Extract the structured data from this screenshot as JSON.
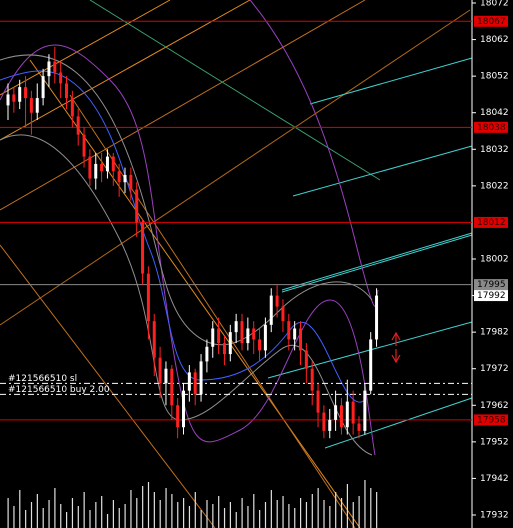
{
  "chart_data": {
    "type": "candlestick",
    "ylim": [
      17932,
      18072
    ],
    "yticks": [
      18072,
      18062,
      18052,
      18042,
      18032,
      18022,
      18002,
      17992,
      17982,
      17972,
      17962,
      17952,
      17942,
      17932
    ],
    "up_color": "#ffffff",
    "down_color": "#ff2020",
    "open": [
      18044,
      18047,
      18045,
      18049,
      18046,
      18042,
      18046,
      18052,
      18056,
      18053,
      18050,
      18046,
      18041,
      18036,
      18030,
      18024,
      18028,
      18026,
      18030,
      18026,
      18023,
      18025,
      18021,
      18012,
      17998,
      17985,
      17975,
      17968,
      17972,
      17962,
      17956,
      17966,
      17971,
      17965,
      17974,
      17978,
      17983,
      17979,
      17976,
      17982,
      17985,
      17979,
      17983,
      17980,
      17977,
      17984,
      17992,
      17989,
      17985,
      17980,
      17983,
      17977,
      17972,
      17966,
      17960,
      17955,
      17958,
      17962,
      17956,
      17963,
      17957,
      17955,
      17966,
      17980
    ],
    "high": [
      18050,
      18049,
      18051,
      18052,
      18048,
      18050,
      18054,
      18058,
      18060,
      18056,
      18052,
      18048,
      18043,
      18038,
      18032,
      18031,
      18031,
      18032,
      18031,
      18028,
      18027,
      18027,
      18023,
      18013,
      18000,
      17987,
      17978,
      17974,
      17973,
      17964,
      17968,
      17973,
      17972,
      17976,
      17980,
      17985,
      17986,
      17981,
      17984,
      17987,
      17987,
      17986,
      17985,
      17983,
      17986,
      17994,
      17995,
      17991,
      17987,
      17985,
      17985,
      17979,
      17974,
      17968,
      17962,
      17961,
      17966,
      17964,
      17969,
      17966,
      17959,
      17968,
      17982,
      17994
    ],
    "low": [
      18040,
      18042,
      18043,
      18038,
      18036,
      18040,
      18044,
      18049,
      18050,
      18046,
      18043,
      18038,
      18033,
      18027,
      18022,
      18021,
      18023,
      18024,
      18022,
      18019,
      18020,
      18018,
      18008,
      17995,
      17980,
      17970,
      17964,
      17962,
      17958,
      17953,
      17954,
      17963,
      17962,
      17963,
      17971,
      17975,
      17976,
      17973,
      17974,
      17979,
      17977,
      17977,
      17976,
      17974,
      17975,
      17982,
      17986,
      17982,
      17977,
      17977,
      17973,
      17968,
      17962,
      17956,
      17953,
      17953,
      17955,
      17954,
      17954,
      17954,
      17953,
      17954,
      17965,
      17978
    ],
    "close": [
      18047,
      18045,
      18049,
      18046,
      18042,
      18046,
      18052,
      18056,
      18053,
      18050,
      18046,
      18041,
      18036,
      18030,
      18024,
      18028,
      18026,
      18030,
      18026,
      18023,
      18025,
      18021,
      18012,
      17998,
      17985,
      17975,
      17968,
      17972,
      17962,
      17956,
      17966,
      17971,
      17965,
      17974,
      17978,
      17983,
      17979,
      17976,
      17982,
      17985,
      17979,
      17983,
      17980,
      17977,
      17984,
      17992,
      17989,
      17985,
      17980,
      17983,
      17977,
      17972,
      17966,
      17960,
      17955,
      17958,
      17962,
      17956,
      17963,
      17957,
      17955,
      17966,
      17980,
      17992
    ],
    "volume": [
      30,
      22,
      38,
      18,
      26,
      34,
      20,
      28,
      40,
      24,
      16,
      30,
      22,
      36,
      18,
      26,
      32,
      14,
      28,
      20,
      24,
      38,
      30,
      42,
      46,
      36,
      28,
      40,
      34,
      26,
      30,
      22,
      36,
      18,
      28,
      24,
      32,
      20,
      26,
      16,
      30,
      22,
      34,
      18,
      26,
      38,
      28,
      32,
      24,
      20,
      30,
      26,
      34,
      40,
      28,
      22,
      36,
      30,
      44,
      26,
      32,
      48,
      40,
      36
    ],
    "volume_color": "#e0e0e0",
    "levels": [
      {
        "value": 18067,
        "color": "#e00000"
      },
      {
        "value": 18038,
        "color": "#e00000"
      },
      {
        "value": 18012,
        "color": "#e00000"
      },
      {
        "value": 17958,
        "color": "#e00000"
      }
    ],
    "bid_line": {
      "value": 17995,
      "color": "#8a8a8a"
    },
    "last_price": 17992,
    "order_lines": [
      {
        "label": "#121566510 sl",
        "value": 17968
      },
      {
        "label": "#121566510 buy 2.00",
        "value": 17965
      }
    ]
  }
}
